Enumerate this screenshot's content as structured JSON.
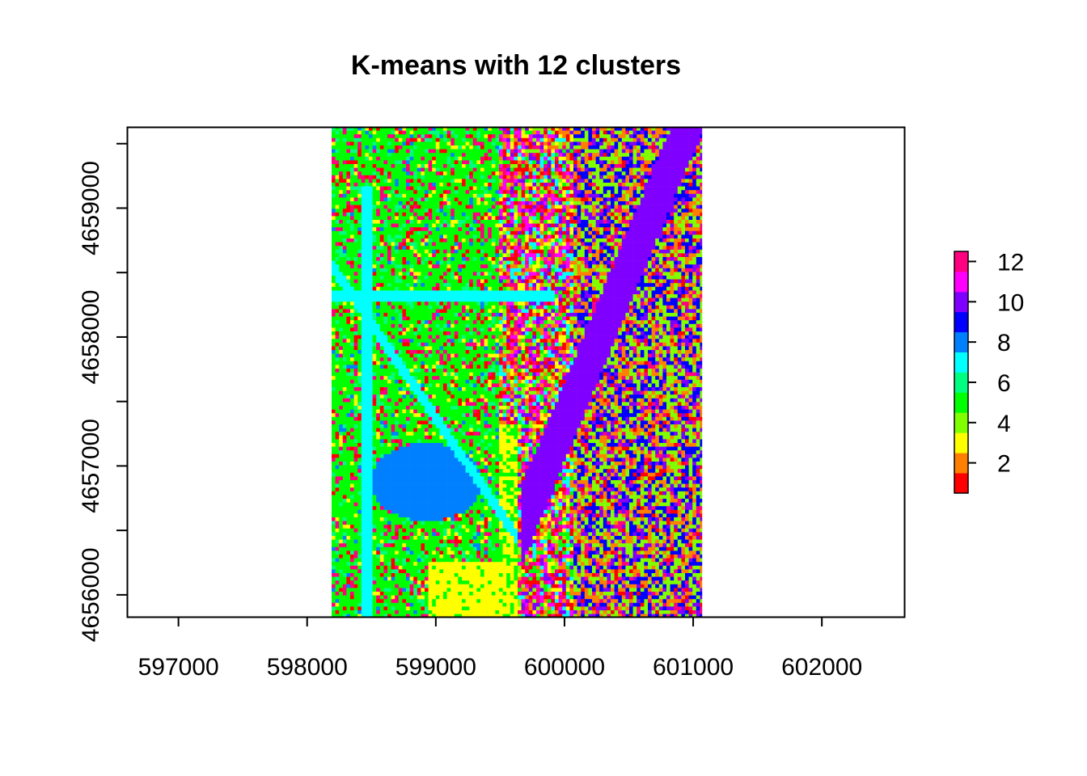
{
  "chart_data": {
    "type": "heatmap",
    "title": "K-means with 12 clusters",
    "xlabel": "",
    "ylabel": "",
    "xlim": [
      596600,
      602640
    ],
    "ylim": [
      4655830,
      4659630
    ],
    "x_ticks": [
      "597000",
      "598000",
      "599000",
      "600000",
      "601000",
      "602000"
    ],
    "y_ticks": [
      "4656000",
      "4657000",
      "4658000",
      "4659000"
    ],
    "raster_extent": {
      "xmin": 598190,
      "xmax": 601070,
      "ymin": 4655830,
      "ymax": 4659630
    },
    "legend": {
      "placement": "right",
      "levels": [
        1,
        2,
        3,
        4,
        5,
        6,
        7,
        8,
        9,
        10,
        11,
        12
      ],
      "colors": [
        "#FF0000",
        "#FF8000",
        "#FFFF00",
        "#80FF00",
        "#00FF00",
        "#00FF80",
        "#00FFFF",
        "#0080FF",
        "#0000FF",
        "#8000FF",
        "#FF00FF",
        "#FF0080"
      ],
      "labels": [
        "2",
        "4",
        "6",
        "8",
        "10",
        "12"
      ]
    },
    "grid": false
  }
}
